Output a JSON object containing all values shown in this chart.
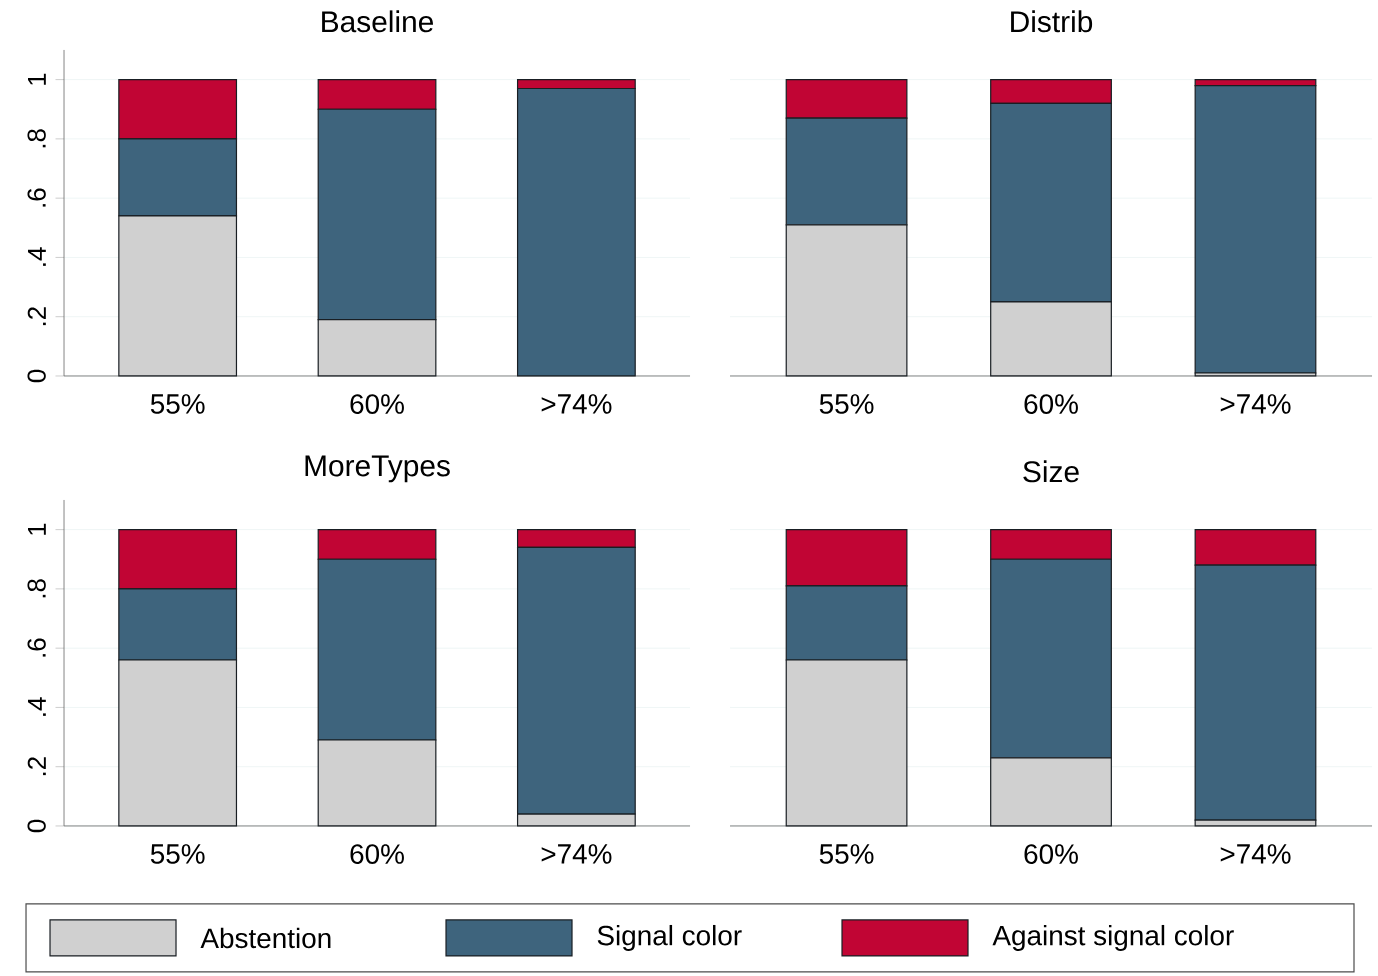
{
  "chart_data": [
    {
      "type": "bar",
      "stacked": true,
      "title": "Baseline",
      "categories": [
        "55%",
        "60%",
        ">74%"
      ],
      "series": [
        {
          "color": "#d0d0d0",
          "values": [
            0.54,
            0.19,
            0.0
          ]
        },
        {
          "color": "#3e647d",
          "values": [
            0.26,
            0.71,
            0.97
          ]
        },
        {
          "color": "#c10534",
          "values": [
            0.2,
            0.1,
            0.03
          ]
        }
      ],
      "ylim": [
        0,
        1.1
      ],
      "yticks": [
        0,
        {
          "value": 0.2,
          "label": ".2"
        },
        {
          "value": 0.4,
          "label": ".4"
        },
        {
          "value": 0.6,
          "label": ".6"
        },
        {
          "value": 0.8,
          "label": ".8"
        },
        1
      ],
      "grid": "y"
    },
    {
      "type": "bar",
      "stacked": true,
      "title": "Distrib",
      "categories": [
        "55%",
        "60%",
        ">74%"
      ],
      "series": [
        {
          "color": "#d0d0d0",
          "values": [
            0.51,
            0.25,
            0.01
          ]
        },
        {
          "color": "#3e647d",
          "values": [
            0.36,
            0.67,
            0.97
          ]
        },
        {
          "color": "#c10534",
          "values": [
            0.13,
            0.08,
            0.02
          ]
        }
      ],
      "ylim": [
        0,
        1
      ],
      "yticks": [
        0,
        0.2,
        0.4,
        0.6,
        0.8,
        1
      ],
      "grid": "y",
      "tick_labels": "x"
    },
    {
      "type": "bar",
      "stacked": true,
      "title": "MoreTypes",
      "categories": [
        "55%",
        "60%",
        ">74%"
      ],
      "series": [
        {
          "color": "#d0d0d0",
          "values": [
            0.56,
            0.29,
            0.04
          ]
        },
        {
          "color": "#3e647d",
          "values": [
            0.24,
            0.61,
            0.9
          ]
        },
        {
          "color": "#c10534",
          "values": [
            0.2,
            0.1,
            0.06
          ]
        }
      ],
      "ylim": [
        0,
        1.1
      ],
      "yticks": [
        0,
        {
          "value": 0.2,
          "label": ".2"
        },
        {
          "value": 0.4,
          "label": ".4"
        },
        {
          "value": 0.6,
          "label": ".6"
        },
        {
          "value": 0.8,
          "label": ".8"
        },
        1
      ],
      "grid": "y"
    },
    {
      "type": "bar",
      "stacked": true,
      "title": "Size",
      "categories": [
        "55%",
        "60%",
        ">74%"
      ],
      "series": [
        {
          "name": "Abstention",
          "color": "#d0d0d0",
          "values": [
            0.56,
            0.23,
            0.02
          ]
        },
        {
          "name": "Signal color",
          "color": "#3e647d",
          "values": [
            0.25,
            0.67,
            0.86
          ]
        },
        {
          "name": "Against signal color",
          "color": "#c10534",
          "values": [
            0.19,
            0.1,
            0.12
          ]
        }
      ],
      "ylim": [
        0,
        1
      ],
      "yticks": [
        0,
        0.2,
        0.4,
        0.6,
        0.8,
        1
      ],
      "grid": "y",
      "tick_labels": "x",
      "legend": "bottom"
    }
  ]
}
